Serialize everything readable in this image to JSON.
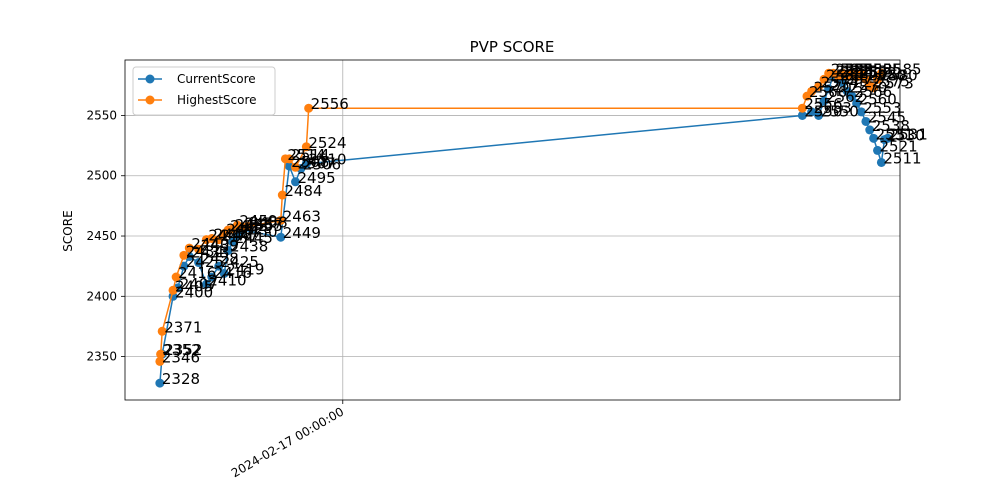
{
  "chart_data": {
    "type": "line",
    "title": "PVP SCORE",
    "xlabel": "",
    "ylabel": "SCORE",
    "x_tick_labels": [
      "2024-02-17 00:00:00"
    ],
    "y_ticks": [
      2350,
      2400,
      2450,
      2500,
      2550
    ],
    "ylim": [
      2314,
      2596
    ],
    "grid": true,
    "legend": "top-left",
    "series": [
      {
        "name": "CurrentScore",
        "color": "#1f77b4",
        "x": [
          0.045,
          0.048,
          0.062,
          0.068,
          0.076,
          0.083,
          0.095,
          0.105,
          0.112,
          0.121,
          0.128,
          0.133,
          0.139,
          0.145,
          0.152,
          0.201,
          0.212,
          0.22,
          0.227,
          0.234,
          0.874,
          0.886,
          0.895,
          0.902,
          0.908,
          0.914,
          0.92,
          0.926,
          0.932,
          0.938,
          0.944,
          0.95,
          0.956,
          0.961,
          0.966,
          0.971,
          0.976,
          0.98,
          0.984
        ],
        "values": [
          2328,
          2352,
          2400,
          2407,
          2425,
          2433,
          2428,
          2410,
          2416,
          2425,
          2419,
          2438,
          2445,
          2450,
          2455,
          2449,
          2508,
          2495,
          2506,
          2510,
          2550,
          2553,
          2550,
          2562,
          2572,
          2583,
          2580,
          2577,
          2570,
          2566,
          2560,
          2553,
          2545,
          2538,
          2531,
          2521,
          2511,
          2530,
          2531
        ],
        "labels": [
          "2328",
          "2352",
          "2400",
          "2407",
          "2425",
          "2433",
          "2428",
          "2410",
          "2416",
          "2425",
          "2419",
          "2438",
          "2445",
          "2450",
          "2455",
          "2449",
          "2508",
          "2495",
          "2506",
          "2510",
          "2550",
          "2553",
          "2550",
          "2562",
          "2572",
          "2583",
          "2580",
          "2577",
          "2570",
          "2566",
          "2560",
          "2553",
          "2545",
          "2538",
          "2531",
          "2521",
          "2511",
          "2530",
          "2531"
        ]
      },
      {
        "name": "HighestScore",
        "color": "#ff7f0e",
        "x": [
          0.045,
          0.046,
          0.048,
          0.062,
          0.066,
          0.076,
          0.083,
          0.095,
          0.105,
          0.112,
          0.121,
          0.128,
          0.133,
          0.139,
          0.145,
          0.152,
          0.158,
          0.201,
          0.203,
          0.207,
          0.212,
          0.22,
          0.234,
          0.237,
          0.874,
          0.88,
          0.886,
          0.895,
          0.902,
          0.908,
          0.914,
          0.92,
          0.926,
          0.932,
          0.938,
          0.944,
          0.95,
          0.956,
          0.961,
          0.966,
          0.971,
          0.976
        ],
        "values": [
          2346,
          2352,
          2371,
          2405,
          2416,
          2434,
          2440,
          2439,
          2447,
          2448,
          2447,
          2452,
          2455,
          2456,
          2459,
          2457,
          2458,
          2463,
          2484,
          2514,
          2514,
          2507,
          2524,
          2556,
          2556,
          2566,
          2570,
          2574,
          2580,
          2585,
          2585,
          2583,
          2585,
          2583,
          2585,
          2582,
          2585,
          2580,
          2575,
          2573,
          2580,
          2585
        ],
        "labels": [
          "2346",
          "2352",
          "2371",
          "2405",
          "2416",
          "2434",
          "2440",
          "2439",
          "2447",
          "2448",
          "2447",
          "2452",
          "2455",
          "2456",
          "2459",
          "2457",
          "2458",
          "2463",
          "2484",
          "2514",
          "2514",
          "2507",
          "2524",
          "2556",
          "2556",
          "2566",
          "2570",
          "2574",
          "2580",
          "2585",
          "2585",
          "2583",
          "2585",
          "2583",
          "2585",
          "2582",
          "2585",
          "2580",
          "2575",
          "2573",
          "2580",
          "2585"
        ]
      }
    ]
  }
}
